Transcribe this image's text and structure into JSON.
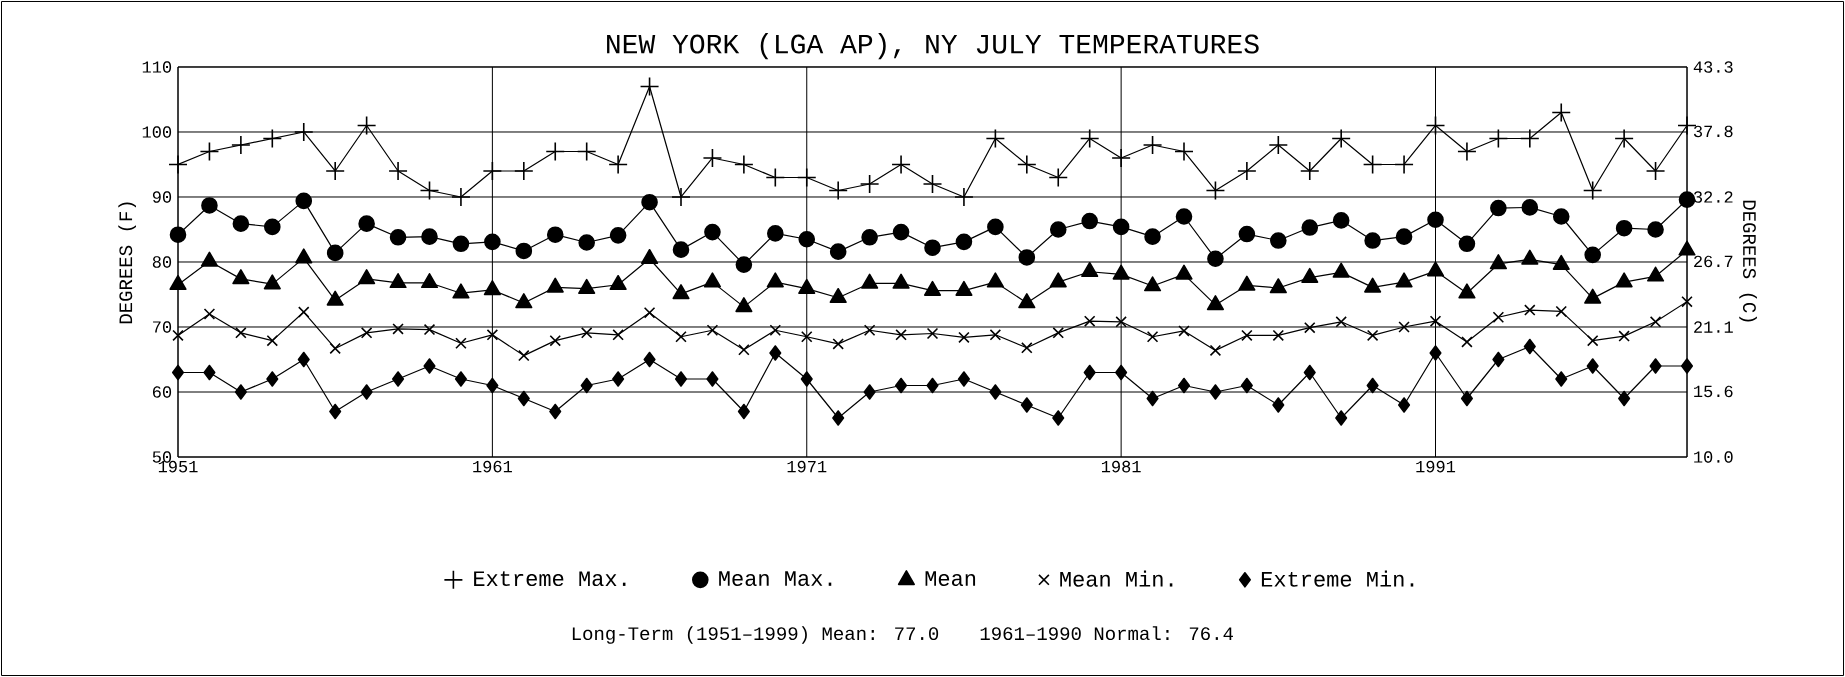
{
  "chart_data": {
    "type": "line",
    "title": "NEW YORK (LGA AP), NY JULY TEMPERATURES",
    "ylabel": "DEGREES (F)",
    "y2label": "DEGREES (C)",
    "x": [
      1951,
      1952,
      1953,
      1954,
      1955,
      1956,
      1957,
      1958,
      1959,
      1960,
      1961,
      1962,
      1963,
      1964,
      1965,
      1966,
      1967,
      1968,
      1969,
      1970,
      1971,
      1972,
      1973,
      1974,
      1975,
      1976,
      1977,
      1978,
      1979,
      1980,
      1981,
      1982,
      1983,
      1984,
      1985,
      1986,
      1987,
      1988,
      1989,
      1990,
      1991,
      1992,
      1993,
      1994,
      1995,
      1996,
      1997,
      1998,
      1999
    ],
    "xlim": [
      1951,
      1999
    ],
    "xticks": [
      1951,
      1961,
      1971,
      1981,
      1991
    ],
    "ylim": [
      50,
      110
    ],
    "yticks": [
      50,
      60,
      70,
      80,
      90,
      100,
      110
    ],
    "y2lim": [
      10,
      43.3
    ],
    "y2ticks": [
      {
        "value": 10,
        "label": "10.0"
      },
      {
        "value": 15.6,
        "label": "15.6"
      },
      {
        "value": 21.1,
        "label": "21.1"
      },
      {
        "value": 26.7,
        "label": "26.7"
      },
      {
        "value": 32.2,
        "label": "32.2"
      },
      {
        "value": 37.8,
        "label": "37.8"
      },
      {
        "value": 43.3,
        "label": "43.3"
      }
    ],
    "grid": true,
    "legend": "bottom",
    "line_style": "solid",
    "series": [
      {
        "name": "Extreme Max.",
        "color": "#000000",
        "marker": "plus",
        "values": [
          95,
          97,
          98,
          99,
          100,
          94,
          101,
          94,
          91,
          90,
          94,
          94,
          97,
          97,
          95,
          107,
          90,
          96,
          95,
          93,
          93,
          91,
          92,
          95,
          92,
          90,
          99,
          95,
          93,
          99,
          96,
          98,
          97,
          91,
          94,
          98,
          94,
          99,
          95,
          95,
          101,
          97,
          99,
          99,
          103,
          91,
          99,
          94,
          101
        ]
      },
      {
        "name": "Mean Max.",
        "color": "#000000",
        "marker": "circle",
        "values": [
          84.2,
          88.7,
          85.9,
          85.4,
          89.4,
          81.4,
          85.9,
          83.8,
          83.9,
          82.8,
          83.1,
          81.7,
          84.2,
          83.0,
          84.1,
          89.2,
          81.9,
          84.6,
          79.6,
          84.4,
          83.5,
          81.6,
          83.8,
          84.6,
          82.2,
          83.1,
          85.4,
          80.7,
          85.0,
          86.3,
          85.4,
          83.9,
          87.0,
          80.5,
          84.3,
          83.3,
          85.3,
          86.4,
          83.3,
          83.9,
          86.5,
          82.8,
          88.3,
          88.4,
          87.0,
          81.1,
          85.2,
          85.0,
          89.6
        ]
      },
      {
        "name": "Mean",
        "color": "#000000",
        "marker": "triangle",
        "values": [
          76.5,
          80.1,
          77.4,
          76.6,
          80.6,
          74.1,
          77.4,
          76.8,
          76.8,
          75.2,
          75.7,
          73.7,
          76.1,
          75.9,
          76.5,
          80.5,
          75.1,
          76.9,
          73.1,
          76.9,
          75.9,
          74.5,
          76.7,
          76.7,
          75.6,
          75.6,
          76.9,
          73.7,
          76.9,
          78.5,
          78.1,
          76.3,
          78.1,
          73.4,
          76.4,
          76.0,
          77.6,
          78.4,
          76.1,
          76.9,
          78.6,
          75.2,
          79.7,
          80.4,
          79.6,
          74.4,
          76.9,
          77.8,
          81.8
        ]
      },
      {
        "name": "Mean Min.",
        "color": "#000000",
        "marker": "cross",
        "values": [
          68.7,
          72.0,
          69.1,
          67.9,
          72.3,
          66.7,
          69.1,
          69.7,
          69.6,
          67.5,
          68.8,
          65.6,
          67.9,
          69.1,
          68.8,
          72.2,
          68.5,
          69.5,
          66.5,
          69.5,
          68.5,
          67.4,
          69.5,
          68.8,
          69.0,
          68.4,
          68.8,
          66.8,
          69.1,
          70.9,
          70.8,
          68.5,
          69.4,
          66.4,
          68.7,
          68.7,
          69.9,
          70.8,
          68.7,
          70.0,
          70.9,
          67.7,
          71.5,
          72.6,
          72.4,
          67.9,
          68.6,
          70.8,
          73.9
        ]
      },
      {
        "name": "Extreme Min.",
        "color": "#000000",
        "marker": "diamond",
        "values": [
          63,
          63,
          60,
          62,
          65,
          57,
          60,
          62,
          64,
          62,
          61,
          59,
          57,
          61,
          62,
          65,
          62,
          62,
          57,
          66,
          62,
          56,
          60,
          61,
          61,
          62,
          60,
          58,
          56,
          63,
          63,
          59,
          61,
          60,
          61,
          58,
          63,
          56,
          61,
          58,
          66,
          59,
          65,
          67,
          62,
          64,
          59,
          64,
          64
        ]
      }
    ],
    "annotations": [
      "Long-Term (1951–1999) Mean: 77.0",
      "1961–1990 Normal: 76.4"
    ]
  }
}
